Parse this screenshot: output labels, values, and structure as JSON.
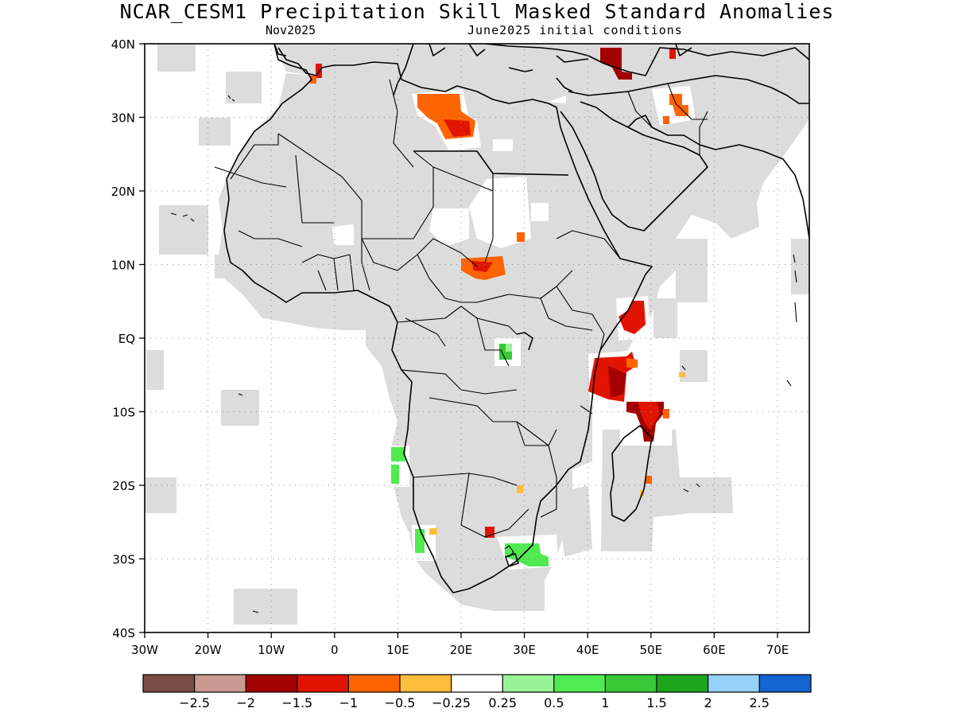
{
  "title": "NCAR_CESM1 Precipitation Skill Masked Standard Anomalies",
  "subtitle_left": "Nov2025",
  "subtitle_right": "June2025 initial conditions",
  "map": {
    "lon_range": [
      -30,
      75
    ],
    "lat_range": [
      -40,
      40
    ],
    "gridlines": "dotted",
    "land_mask_color": "#dcdcdc",
    "x_ticks": [
      "30W",
      "20W",
      "10W",
      "0",
      "10E",
      "20E",
      "30E",
      "40E",
      "50E",
      "60E",
      "70E"
    ],
    "y_ticks": [
      "40N",
      "30N",
      "20N",
      "10N",
      "EQ",
      "10S",
      "20S",
      "30S",
      "40S"
    ]
  },
  "colorbar": {
    "colors": [
      "#7a4d45",
      "#c99a91",
      "#a30000",
      "#e01400",
      "#ff6400",
      "#ffbd3c",
      "#ffffff",
      "#98f296",
      "#50eb50",
      "#38c838",
      "#1ea51e",
      "#96d2fa",
      "#1464d2"
    ],
    "labels": [
      "−2.5",
      "−2",
      "−1.5",
      "−1",
      "−0.5",
      "−0.25",
      "0.25",
      "0.5",
      "1",
      "1.5",
      "2",
      "2.5"
    ]
  },
  "anomaly_regions": [
    {
      "name": "Gibraltar strait",
      "value": -1.5
    },
    {
      "name": "Libya",
      "value": -1
    },
    {
      "name": "Turkey / Caucasus",
      "value": -1.5
    },
    {
      "name": "Iran",
      "value": -1
    },
    {
      "name": "Sudan / Chad border",
      "value": -1
    },
    {
      "name": "Somalia coast",
      "value": -1.5
    },
    {
      "name": "Kenya / Somalia offshore",
      "value": -1.5
    },
    {
      "name": "Northern Madagascar",
      "value": -1.5
    },
    {
      "name": "Lake Victoria region",
      "value": 1
    },
    {
      "name": "Angola coast",
      "value": 1
    },
    {
      "name": "Namibia / South Africa west coast",
      "value": 1
    },
    {
      "name": "Eastern South Africa",
      "value": 1
    },
    {
      "name": "Eastern Madagascar",
      "value": -0.5
    },
    {
      "name": "Mozambique",
      "value": -0.5
    }
  ]
}
